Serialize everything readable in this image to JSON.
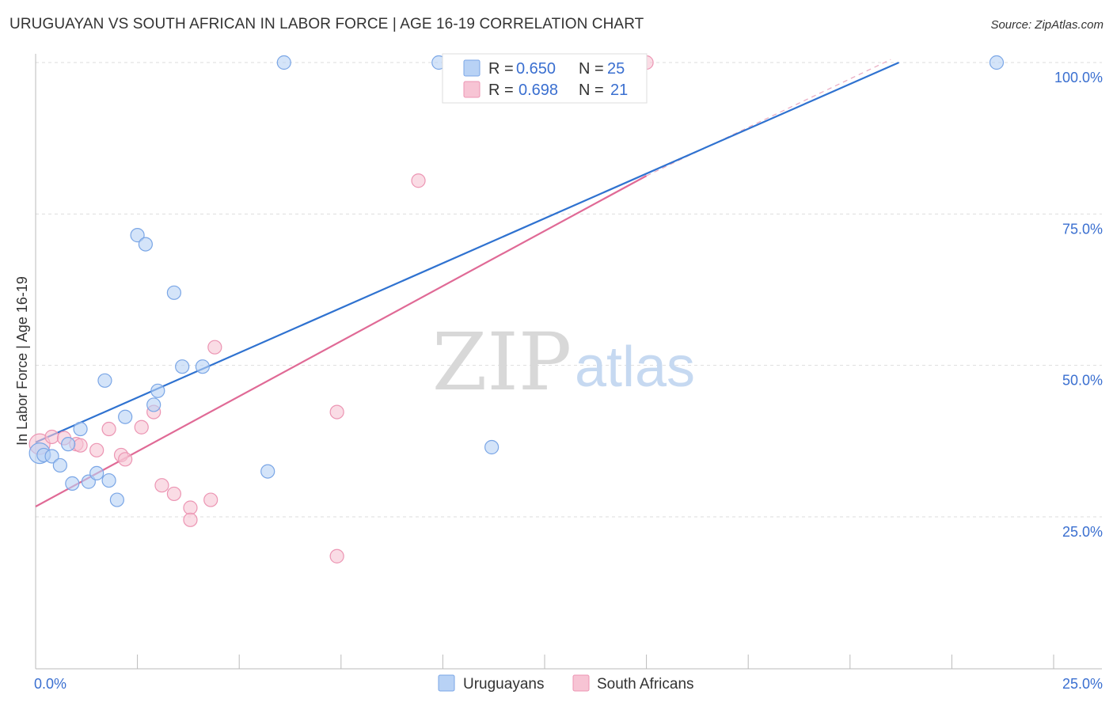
{
  "title": "URUGUAYAN VS SOUTH AFRICAN IN LABOR FORCE | AGE 16-19 CORRELATION CHART",
  "source": "Source: ZipAtlas.com",
  "watermark": {
    "zip": "ZIP",
    "atlas": "atlas"
  },
  "colors": {
    "blue": "#2f72d0",
    "blue_fill": "#b8d2f5",
    "blue_stroke": "#7aa6e6",
    "pink": "#e06a96",
    "pink_fill": "#f7c4d4",
    "pink_stroke": "#ec95b3",
    "grid": "#dddddd",
    "tick_text": "#3a6fd0"
  },
  "legend": {
    "rows": [
      {
        "r_label": "R =",
        "r_value": "0.650",
        "n_label": "N =",
        "n_value": "25"
      },
      {
        "r_label": "R =",
        "r_value": "0.698",
        "n_label": "N =",
        "n_value": "21"
      }
    ]
  },
  "bottom_legend": [
    "Uruguayans",
    "South Africans"
  ],
  "chart_data": {
    "type": "scatter",
    "title": "URUGUAYAN VS SOUTH AFRICAN IN LABOR FORCE | AGE 16-19 CORRELATION CHART",
    "xlabel": "",
    "ylabel": "In Labor Force | Age 16-19",
    "xlim": [
      0,
      25
    ],
    "ylim": [
      0,
      102
    ],
    "x_tick_labels": [
      {
        "value": 0,
        "label": "0.0%"
      },
      {
        "value": 25,
        "label": "25.0%"
      }
    ],
    "y_tick_labels": [
      {
        "value": 25,
        "label": "25.0%"
      },
      {
        "value": 50,
        "label": "50.0%"
      },
      {
        "value": 75,
        "label": "75.0%"
      },
      {
        "value": 100,
        "label": "100.0%"
      }
    ],
    "series": [
      {
        "name": "Uruguayans",
        "r": 0.65,
        "n": 25,
        "points": [
          [
            0.1,
            35.5
          ],
          [
            0.2,
            35.2
          ],
          [
            0.4,
            35.0
          ],
          [
            0.6,
            33.5
          ],
          [
            0.8,
            37.0
          ],
          [
            0.9,
            30.5
          ],
          [
            1.1,
            39.5
          ],
          [
            1.3,
            30.8
          ],
          [
            1.5,
            32.2
          ],
          [
            1.8,
            31.0
          ],
          [
            1.7,
            47.5
          ],
          [
            2.0,
            27.8
          ],
          [
            2.2,
            41.5
          ],
          [
            2.5,
            71.5
          ],
          [
            2.7,
            70.0
          ],
          [
            2.9,
            43.5
          ],
          [
            3.0,
            45.8
          ],
          [
            3.4,
            62.0
          ],
          [
            3.6,
            49.8
          ],
          [
            4.1,
            49.8
          ],
          [
            5.7,
            32.5
          ],
          [
            6.1,
            100.0
          ],
          [
            9.9,
            100.0
          ],
          [
            11.2,
            36.5
          ],
          [
            23.6,
            100.0
          ]
        ],
        "trend": {
          "x": [
            0,
            21.2
          ],
          "y": [
            37.3,
            100.0
          ]
        }
      },
      {
        "name": "South Africans",
        "r": 0.698,
        "n": 21,
        "points": [
          [
            0.1,
            37.0
          ],
          [
            0.4,
            38.2
          ],
          [
            0.7,
            38.0
          ],
          [
            1.0,
            37.0
          ],
          [
            1.1,
            36.8
          ],
          [
            1.5,
            36.0
          ],
          [
            1.8,
            39.5
          ],
          [
            2.1,
            35.2
          ],
          [
            2.2,
            34.5
          ],
          [
            2.6,
            39.8
          ],
          [
            2.9,
            42.3
          ],
          [
            3.1,
            30.2
          ],
          [
            3.4,
            28.8
          ],
          [
            3.8,
            26.5
          ],
          [
            3.8,
            24.5
          ],
          [
            4.3,
            27.8
          ],
          [
            4.4,
            53.0
          ],
          [
            7.4,
            42.3
          ],
          [
            7.4,
            18.5
          ],
          [
            9.4,
            80.5
          ],
          [
            15.0,
            100.0
          ]
        ],
        "trend": {
          "x": [
            0,
            15.0
          ],
          "y": [
            26.7,
            81.3
          ]
        },
        "trend_extension": {
          "x": [
            15.0,
            21.0
          ],
          "y": [
            81.3,
            100.5
          ]
        }
      }
    ]
  }
}
